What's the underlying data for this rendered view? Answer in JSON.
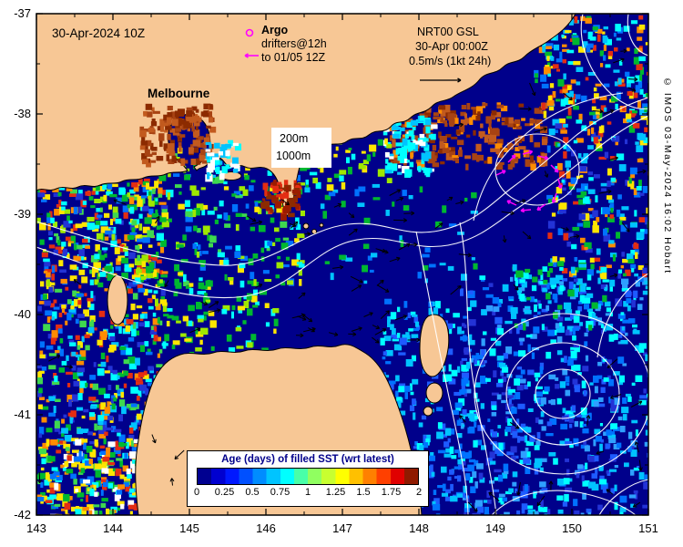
{
  "figure": {
    "datetime_label": "30-Apr-2024 10Z",
    "city_label": "Melbourne",
    "copyright": "© IMOS 03-May-2024 16:02 Hobart"
  },
  "legends": {
    "argo": {
      "title": "Argo",
      "line1": "drifters@12h",
      "line2": "to 01/05 12Z"
    },
    "nrt": {
      "line1": "NRT00 GSL",
      "line2": "30-Apr 00:00Z",
      "line3": "0.5m/s (1kt 24h)"
    },
    "depth_labels": {
      "shelf": "200m",
      "slope": "1000m"
    }
  },
  "axes": {
    "x_tick_labels": [
      "143",
      "144",
      "145",
      "146",
      "147",
      "148",
      "149",
      "150",
      "151"
    ],
    "y_tick_labels": [
      "-37",
      "-38",
      "-39",
      "-40",
      "-41",
      "-42"
    ]
  },
  "colorbar": {
    "title": "Age (days) of filled SST (wrt latest)",
    "tick_labels": [
      "0",
      "0.25",
      "0.5",
      "0.75",
      "1",
      "1.25",
      "1.5",
      "1.75",
      "2"
    ],
    "segment_colors": [
      "#000090",
      "#0000D0",
      "#0018FF",
      "#0050FF",
      "#008CFF",
      "#00C4FF",
      "#00FFFF",
      "#48FFA8",
      "#90FF60",
      "#C8FF30",
      "#FFFF00",
      "#FFC000",
      "#FF8000",
      "#FF4000",
      "#E00000",
      "#8F1A00"
    ],
    "title_color": "#00008B"
  },
  "map_colors": {
    "ocean": "#00008B",
    "land": "#F7C795",
    "coastline": "#000000",
    "contour_line": "#FFFFFF",
    "current_vector": "#000000",
    "drifter": "#FF00FF"
  }
}
